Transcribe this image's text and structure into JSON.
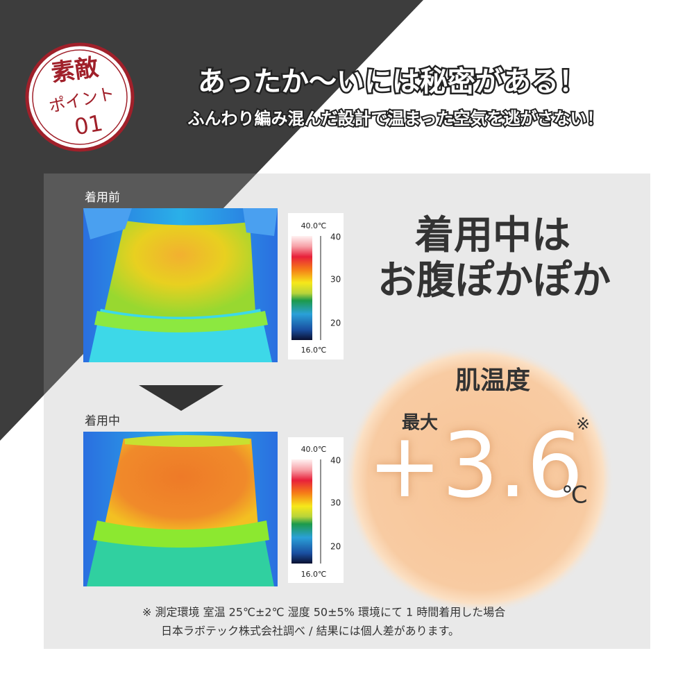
{
  "badge": {
    "line1": "素敵",
    "line2": "ポイント",
    "number": "01"
  },
  "header": {
    "title": "あったか〜いには秘密がある！",
    "subtitle": "ふんわり編み混んだ設計で温まった空気を逃がさない！"
  },
  "thermal_images": [
    {
      "label": "着用前",
      "scale": {
        "max": "40.0℃",
        "ticks": [
          "40",
          "30",
          "20"
        ],
        "min": "16.0℃"
      }
    },
    {
      "label": "着用中",
      "scale": {
        "max": "40.0℃",
        "ticks": [
          "40",
          "30",
          "20"
        ],
        "min": "16.0℃"
      }
    }
  ],
  "headline": [
    "着用中は",
    "お腹ぽかぽか"
  ],
  "highlight": {
    "label": "肌温度",
    "prefix": "最大",
    "note_mark": "※",
    "value": "+3.6",
    "unit": "℃"
  },
  "footnote": [
    "※ 測定環境 室温 25℃±2℃ 湿度 50±5% 環境にて 1 時間着用した場合",
    "日本ラボテック株式会社調べ / 結果には個人差があります。"
  ]
}
